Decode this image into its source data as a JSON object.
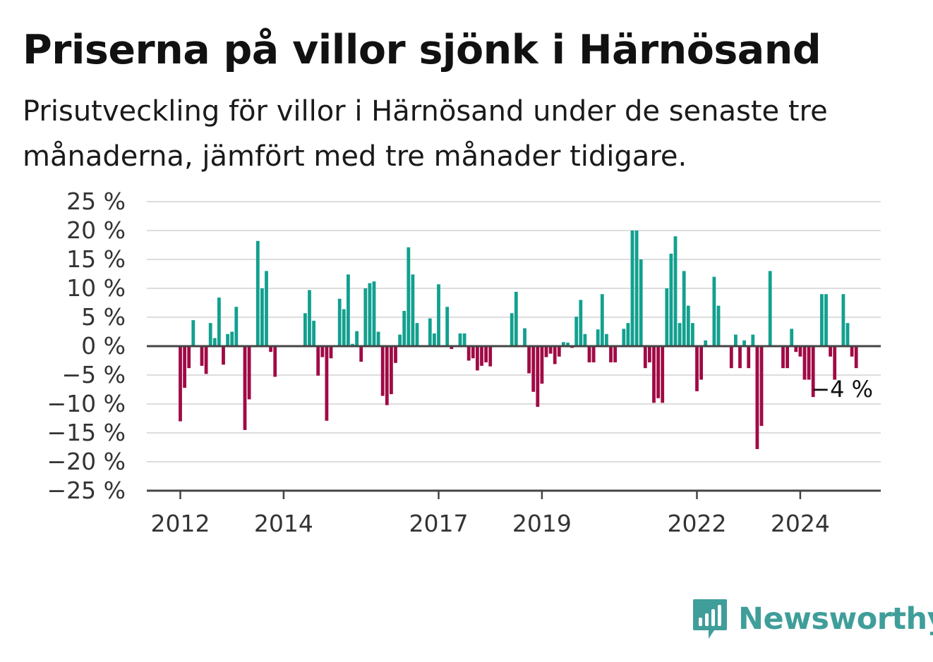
{
  "title": "Priserna på villor sjönk i Härnösand",
  "subtitle": "Prisutveckling för villor i Härnösand under de senaste tre månaderna, jämfört med tre månader tidigare.",
  "brand": {
    "name": "Newsworthy",
    "color": "#3f9e9a"
  },
  "colors": {
    "positive": "#12a08f",
    "negative": "#a00a45",
    "grid": "#dddddd",
    "axis": "#444444"
  },
  "chart_data": {
    "type": "bar",
    "x_tick_labels": [
      "2012",
      "2014",
      "2017",
      "2019",
      "2022",
      "2024"
    ],
    "y_tick_labels": [
      "25 %",
      "20 %",
      "15 %",
      "10 %",
      "5 %",
      "0 %",
      "−5 %",
      "−10 %",
      "−15 %",
      "−20 %",
      "−25 %"
    ],
    "ylim": [
      -25,
      25
    ],
    "grid": true,
    "annotation": "−4 %",
    "series": [
      {
        "values": [
          -13,
          -7.2,
          -3.8,
          4.5,
          null,
          -3.4,
          -4.8,
          4,
          1.4,
          8.4,
          -3.2,
          2.1,
          2.5,
          6.8,
          null,
          -14.5,
          -9.2,
          null,
          18.2,
          10,
          13,
          -1,
          -5.3,
          null,
          null,
          null,
          null,
          null,
          null,
          5.7,
          9.7,
          4.4,
          -5.1,
          -1.9,
          -12.9,
          -2.1,
          null,
          8.2,
          6.4,
          12.4,
          0.4,
          2.6,
          -2.7,
          10,
          10.9,
          11.2,
          2.5,
          -8.6,
          -10.2,
          -8.3,
          -2.9,
          2,
          6.1,
          17.1,
          12.4,
          4,
          null,
          null,
          4.8,
          2.2,
          10.7,
          null,
          6.8,
          -0.5,
          null,
          2.2,
          2.2,
          -2.5,
          -2.1,
          -4.2,
          -3.4,
          -2.8,
          -3.5,
          null,
          null,
          null,
          null,
          5.7,
          9.4,
          null,
          3.1,
          -4.7,
          -7.9,
          -10.5,
          -6.5,
          -1.9,
          -1.3,
          -3.1,
          -1.8,
          0.7,
          0.6,
          -0.3,
          5.1,
          8,
          2.1,
          -2.8,
          -2.8,
          2.9,
          9,
          2.1,
          -2.8,
          -2.8,
          null,
          3,
          4,
          20,
          20,
          15,
          -3.8,
          -2.8,
          -9.8,
          -9,
          -9.8,
          10,
          16,
          19,
          4,
          13,
          7,
          4,
          -7.8,
          -5.8,
          1,
          null,
          12,
          7,
          null,
          null,
          -3.8,
          2,
          -3.8,
          1,
          -3.8,
          2,
          -17.8,
          -13.8,
          null,
          13,
          null,
          null,
          -3.8,
          -3.8,
          3,
          -1,
          -1.8,
          -5.8,
          -5.8,
          -8.8,
          null,
          9,
          9,
          -1.8,
          -5.8,
          null,
          9,
          4,
          -1.8,
          -3.8
        ]
      }
    ]
  }
}
